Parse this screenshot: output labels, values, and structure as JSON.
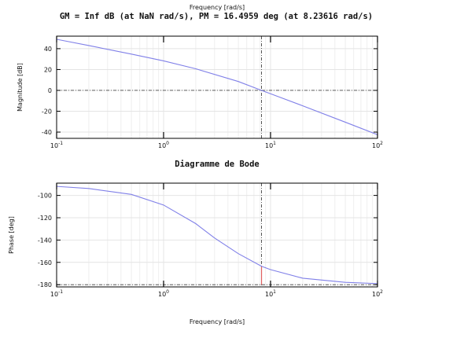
{
  "figure": {
    "header_text": "GM = Inf dB (at NaN rad/s),   PM = 16.4959 deg (at 8.23616 rad/s)",
    "top_cut_label": "Frequency [rad/s]",
    "middle_title": "Diagramme de Bode",
    "bottom_cut_label": "Frequency [rad/s]"
  },
  "colors": {
    "curve": "#8080e8",
    "margin_line": "#444444",
    "phase_marker": "#e06060",
    "grid": "#e4e4e4",
    "axis": "#000000"
  },
  "chart_data": [
    {
      "type": "line",
      "title": "",
      "xlabel": "",
      "ylabel": "Magnitude [dB]",
      "xscale": "log",
      "xlim": [
        0.1,
        100
      ],
      "ylim": [
        -46,
        52
      ],
      "yticks": [
        40,
        20,
        0,
        -20,
        -40
      ],
      "xticks": [
        {
          "base": "10",
          "exp": "-1"
        },
        {
          "base": "10",
          "exp": "0"
        },
        {
          "base": "10",
          "exp": "1"
        },
        {
          "base": "10",
          "exp": "2"
        }
      ],
      "grid": true,
      "series": [
        {
          "x": [
            0.1,
            0.2,
            0.5,
            1,
            2,
            5,
            8.24,
            10,
            20,
            50,
            100
          ],
          "y": [
            49.0,
            43.0,
            34.8,
            28.3,
            20.7,
            8.5,
            0.0,
            -3.2,
            -14.8,
            -30.5,
            -42.5
          ]
        }
      ],
      "annotations": {
        "zero_db_line": 0,
        "crossover_frequency": 8.23616
      }
    },
    {
      "type": "line",
      "title": "",
      "xlabel": "",
      "ylabel": "Phase [deg]",
      "xscale": "log",
      "xlim": [
        0.1,
        100
      ],
      "ylim": [
        -182,
        -89
      ],
      "yticks": [
        -100,
        -120,
        -140,
        -160,
        -180
      ],
      "xticks": [
        {
          "base": "10",
          "exp": "-1"
        },
        {
          "base": "10",
          "exp": "0"
        },
        {
          "base": "10",
          "exp": "1"
        },
        {
          "base": "10",
          "exp": "2"
        }
      ],
      "grid": true,
      "series": [
        {
          "x": [
            0.1,
            0.2,
            0.5,
            1,
            2,
            3,
            5,
            8.24,
            10,
            20,
            50,
            100
          ],
          "y": [
            -91.9,
            -93.8,
            -99.1,
            -108.6,
            -125.3,
            -138.2,
            -152.2,
            -163.5,
            -166.5,
            -174.2,
            -177.9,
            -179.0
          ]
        }
      ],
      "annotations": {
        "minus_180_line": -180,
        "crossover_frequency": 8.23616,
        "phase_at_crossover": -163.5
      }
    }
  ]
}
